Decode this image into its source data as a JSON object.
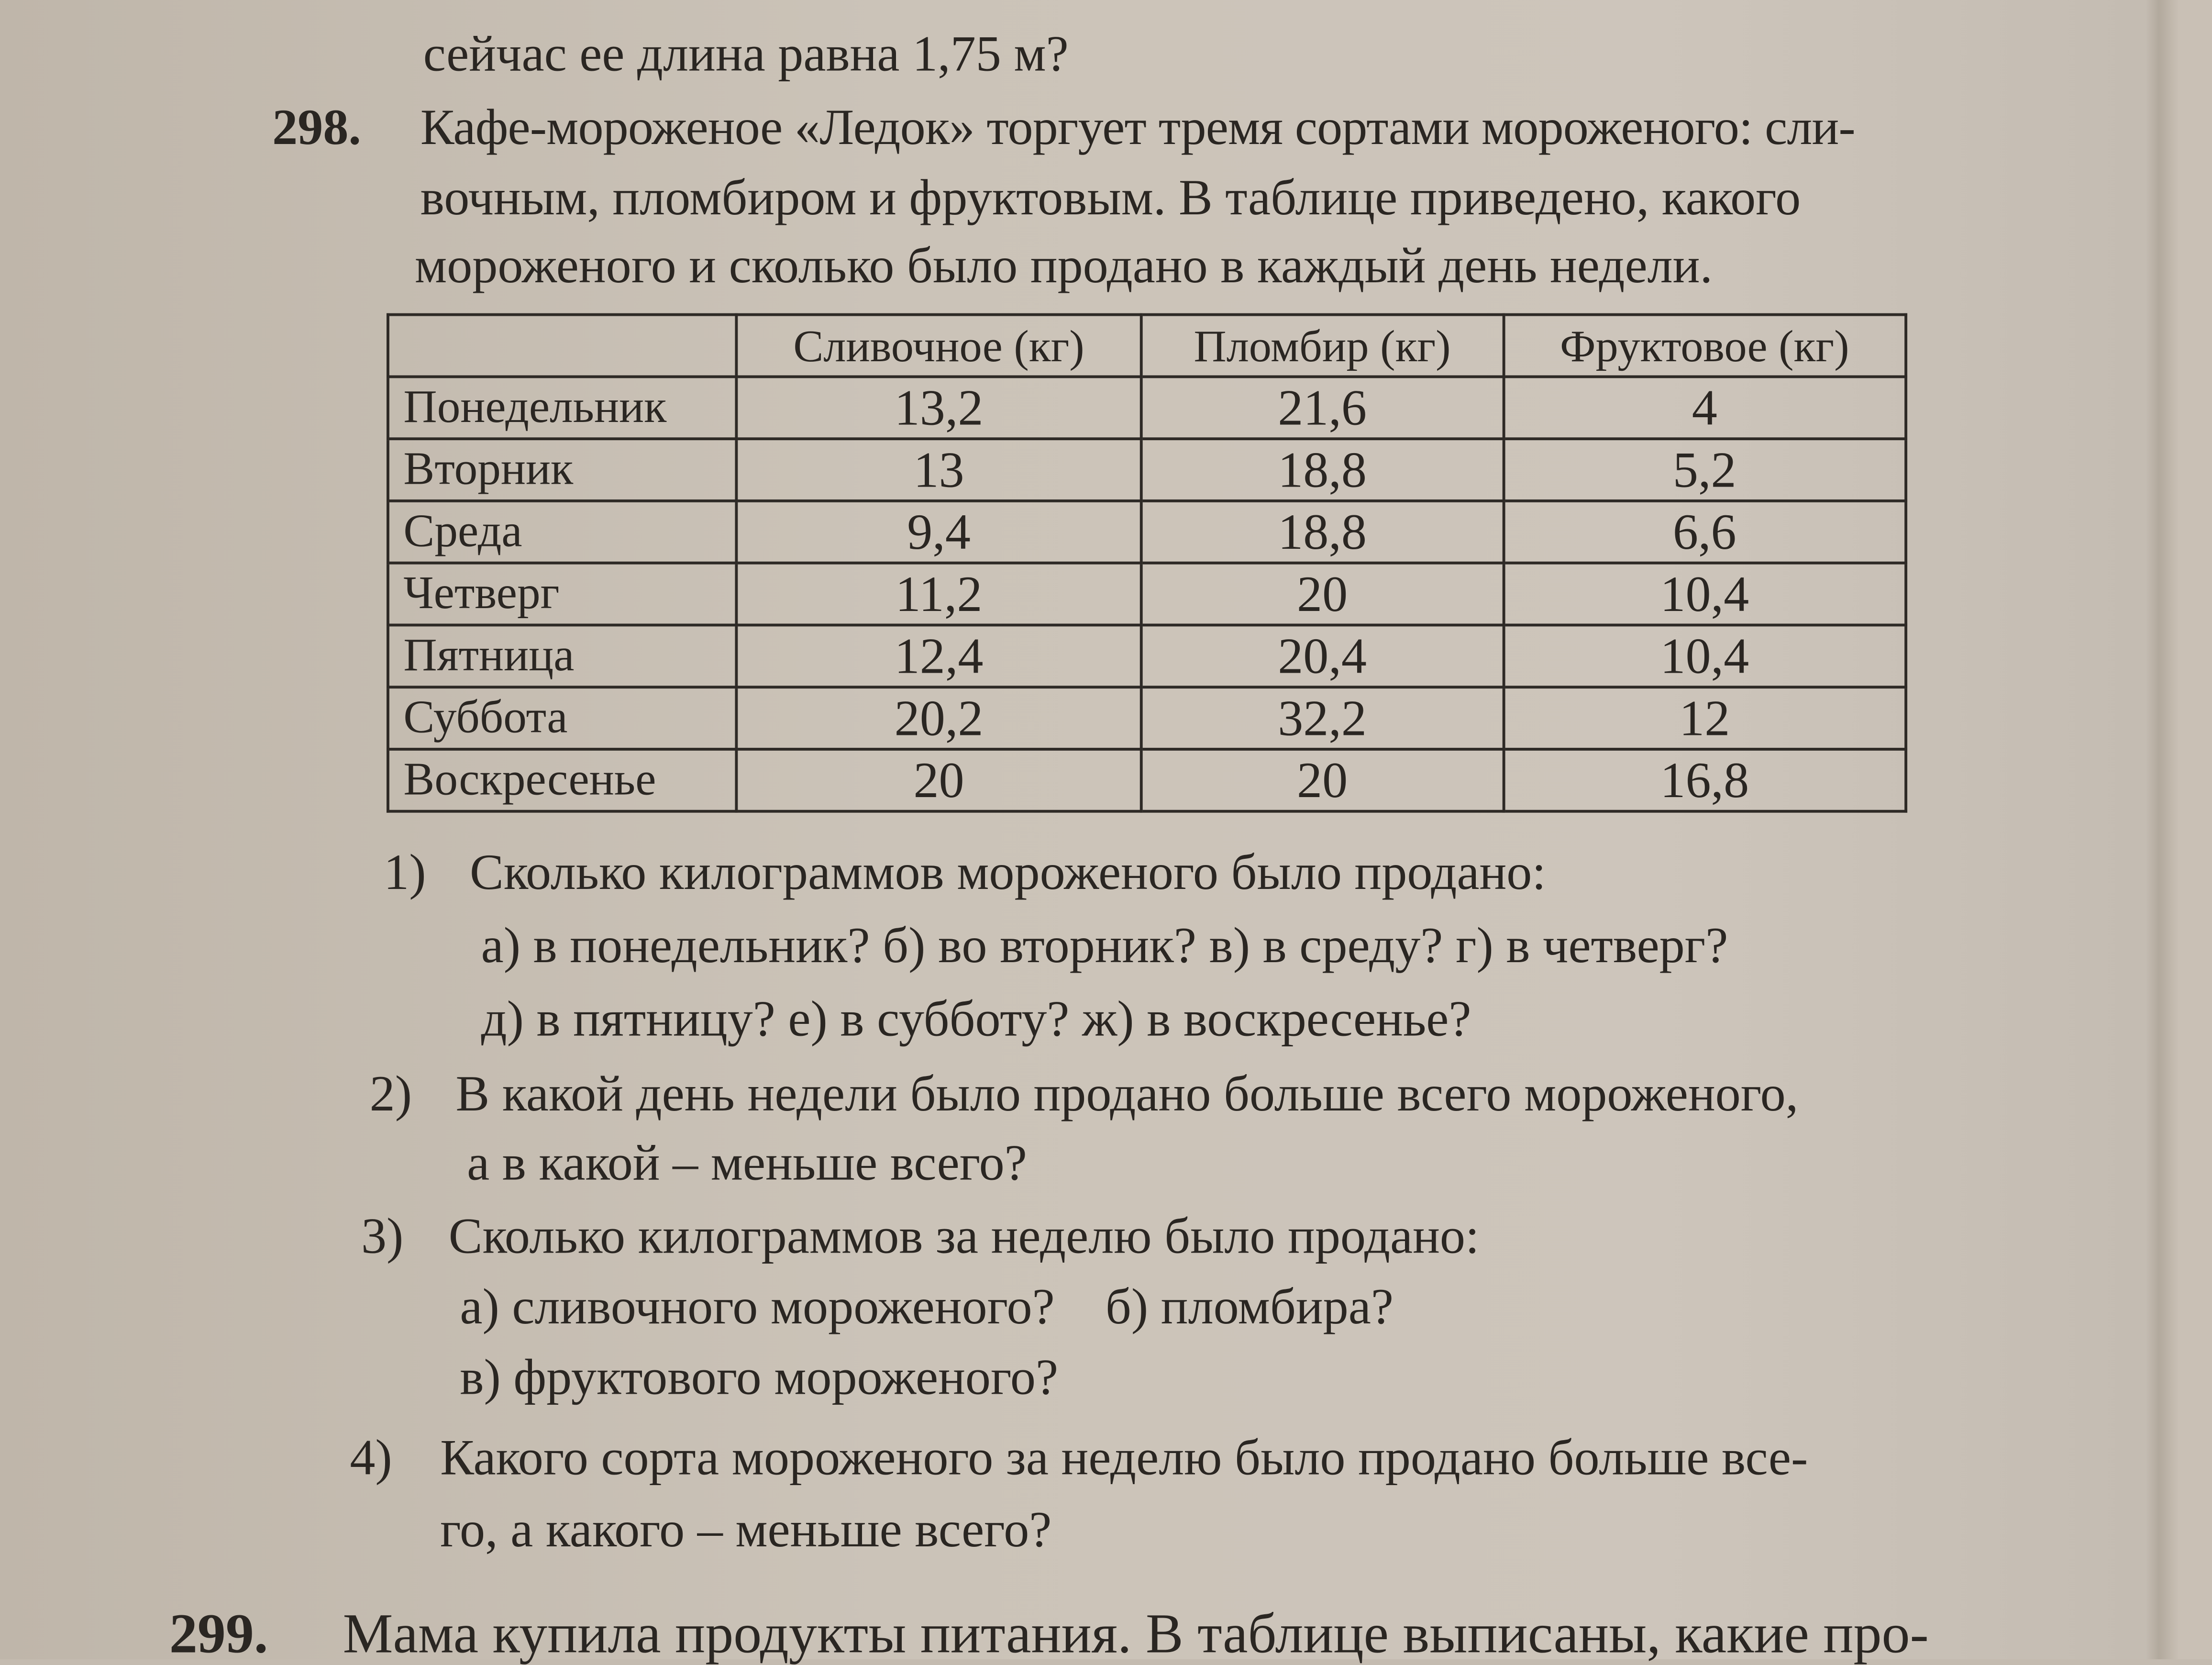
{
  "prev_problem_tail": "сейчас ее длина равна 1,75 м?",
  "problem": {
    "number": "298.",
    "lines": [
      "Кафе-мороженое «Ледок» торгует тремя сортами мороженого: сли-",
      "вочным, пломбиром и фруктовым. В таблице приведено, какого",
      "мороженого и сколько было продано в каждый день недели."
    ],
    "table": {
      "headers": [
        "",
        "Сливочное (кг)",
        "Пломбир (кг)",
        "Фруктовое (кг)"
      ],
      "rows": [
        [
          "Понедельник",
          "13,2",
          "21,6",
          "4"
        ],
        [
          "Вторник",
          "13",
          "18,8",
          "5,2"
        ],
        [
          "Среда",
          "9,4",
          "18,8",
          "6,6"
        ],
        [
          "Четверг",
          "11,2",
          "20",
          "10,4"
        ],
        [
          "Пятница",
          "12,4",
          "20,4",
          "10,4"
        ],
        [
          "Суббота",
          "20,2",
          "32,2",
          "12"
        ],
        [
          "Воскресенье",
          "20",
          "20",
          "16,8"
        ]
      ]
    },
    "questions": [
      {
        "n": "1)",
        "lines": [
          "Сколько килограммов мороженого было продано:",
          "а) в понедельник? б) во вторник? в) в среду? г) в четверг?",
          "д) в пятницу? е) в субботу? ж) в воскресенье?"
        ]
      },
      {
        "n": "2)",
        "lines": [
          "В какой день недели было продано больше всего мороженого,",
          "а в какой – меньше всего?"
        ]
      },
      {
        "n": "3)",
        "lines": [
          "Сколько килограммов за неделю было продано:",
          "а) сливочного мороженого?    б) пломбира?",
          "в) фруктового мороженого?"
        ]
      },
      {
        "n": "4)",
        "lines": [
          "Какого сорта мороженого за неделю было продано больше все-",
          "го, а какого – меньше всего?"
        ]
      }
    ]
  },
  "next_problem": {
    "number": "299.",
    "text": "Мама купила продукты питания. В таблице выписаны, какие про-"
  }
}
